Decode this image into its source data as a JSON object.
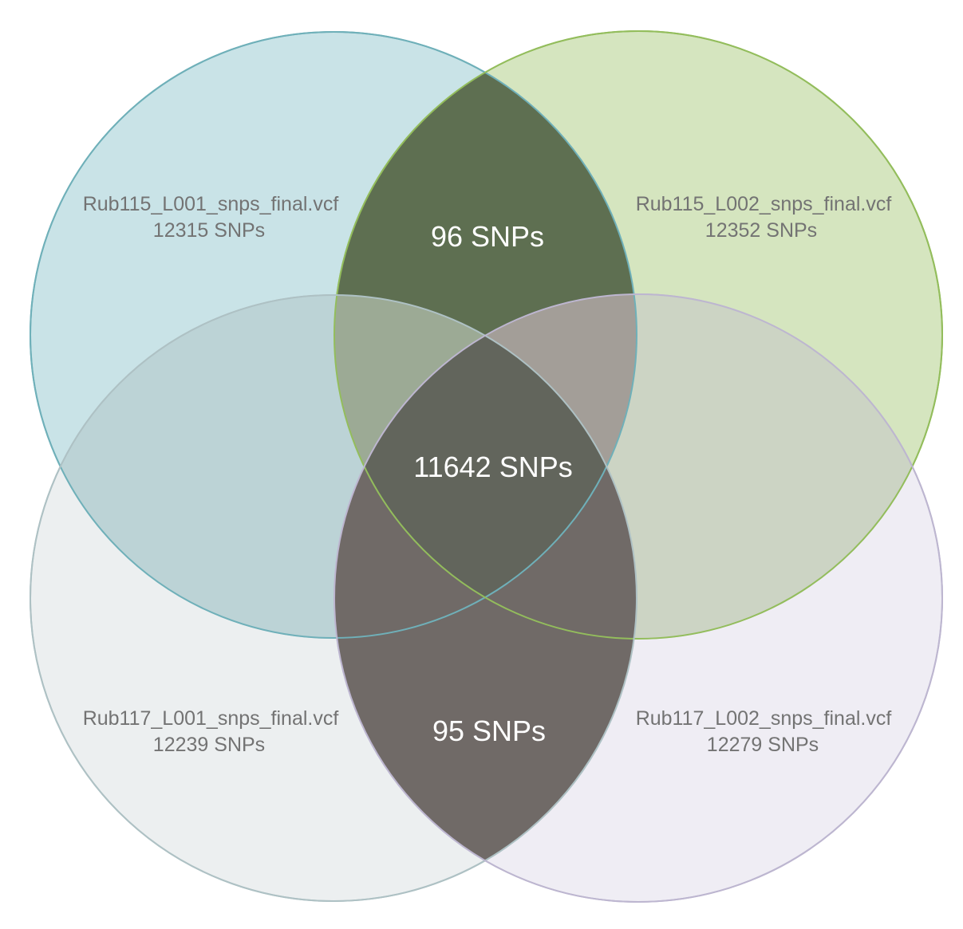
{
  "sets": [
    {
      "name": "Rub115_L001_snps_final.vcf",
      "count": "12315",
      "unit": "SNPs",
      "fill": "#c9e3e7",
      "stroke": "#6fb0b9"
    },
    {
      "name": "Rub115_L002_snps_final.vcf",
      "count": "12352",
      "unit": "SNPs",
      "fill": "#d5e5bf",
      "stroke": "#93bd5c"
    },
    {
      "name": "Rub117_L001_snps_final.vcf",
      "count": "12239",
      "unit": "SNPs",
      "fill": "#dfe4e6",
      "stroke": "#aec1c4"
    },
    {
      "name": "Rub117_L002_snps_final.vcf",
      "count": "12279",
      "unit": "SNPs",
      "fill": "#e4e1ec",
      "stroke": "#bdb6d0"
    }
  ],
  "regions": {
    "top": {
      "text": "96 SNPs",
      "fill": "#5e6f51"
    },
    "center": {
      "text": "11642 SNPs",
      "fill": "#62655c"
    },
    "bottom": {
      "text": "95 SNPs",
      "fill": "#706a67"
    }
  }
}
